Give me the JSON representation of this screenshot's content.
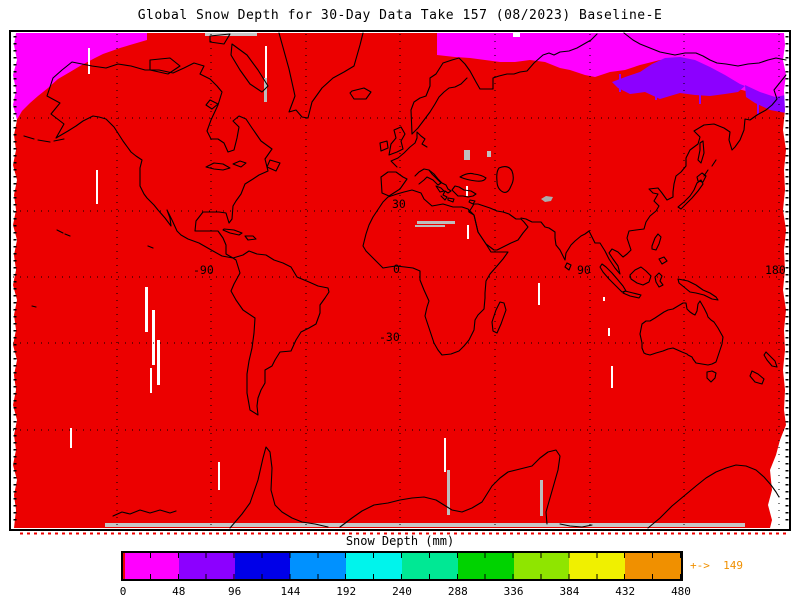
{
  "title": "Global Snow Depth for 30-Day Data Take 157 (08/2023) Baseline-E",
  "map": {
    "labels": [
      "30",
      "0",
      "-30",
      "-90",
      "90",
      "180"
    ]
  },
  "legend": {
    "title": "Snow Depth (mm)",
    "ticks": [
      "0",
      "48",
      "96",
      "144",
      "192",
      "240",
      "288",
      "336",
      "384",
      "432",
      "480"
    ],
    "colors": [
      "#FF00FF",
      "#8C00FF",
      "#0000E8",
      "#0091FF",
      "#00F4EC",
      "#00E894",
      "#00D300",
      "#8FE500",
      "#F0F000",
      "#F09000"
    ],
    "zero_color": "#EC0000",
    "overflow_arrow": "+->",
    "overflow_value": "149",
    "overflow_color": "#F09000"
  },
  "chart_data": {
    "type": "heatmap",
    "subtype": "global-geographic-map",
    "title": "Global Snow Depth for 30-Day Data Take 157 (08/2023) Baseline-E",
    "colorbar": {
      "title": "Snow Depth (mm)",
      "tick_values": [
        0,
        48,
        96,
        144,
        192,
        240,
        288,
        336,
        384,
        432,
        480
      ],
      "bin_colors": [
        "#FF00FF",
        "#8C00FF",
        "#0000E8",
        "#0091FF",
        "#00F4EC",
        "#00E894",
        "#00D300",
        "#8FE500",
        "#F0F000",
        "#F09000"
      ],
      "zero_value_color": "#EC0000",
      "overflow_annotation": {
        "text": "+-> 149",
        "color": "#F09000"
      }
    },
    "map_grid": {
      "lon_range_deg": [
        -180,
        180
      ],
      "lat_gridlines_deg": [
        60,
        30,
        0,
        -30,
        -60
      ],
      "lon_gridlines_deg": [
        -135,
        -90,
        -45,
        0,
        45,
        90,
        135,
        180
      ],
      "gridline_style": "dotted-black",
      "coastlines": "black outlines over data"
    },
    "map_axis_labels": [
      "30",
      "0",
      "-30",
      "-90",
      "90",
      "180"
    ],
    "regions": [
      {
        "area": "nearly all land and ocean",
        "color": "#EC0000",
        "value_bin_mm": "~0 (below first colorbar bin)"
      },
      {
        "area": "Arctic Ocean north of Alaska / NW Canada (top-left wedge)",
        "color": "#FF00FF",
        "value_bin_mm": "0-48"
      },
      {
        "area": "Arctic Ocean along Siberian shelf (top-right band)",
        "color": "#FF00FF",
        "value_bin_mm": "0-48"
      },
      {
        "area": "East Siberian coastal band",
        "color": "#8C00FF",
        "value_bin_mm": "48-96"
      },
      {
        "area": "scattered vertical streaks, Sahara patches, bottom strip",
        "color": "#BDBDBD / #FFFFFF",
        "value_bin_mm": "no data"
      }
    ]
  }
}
